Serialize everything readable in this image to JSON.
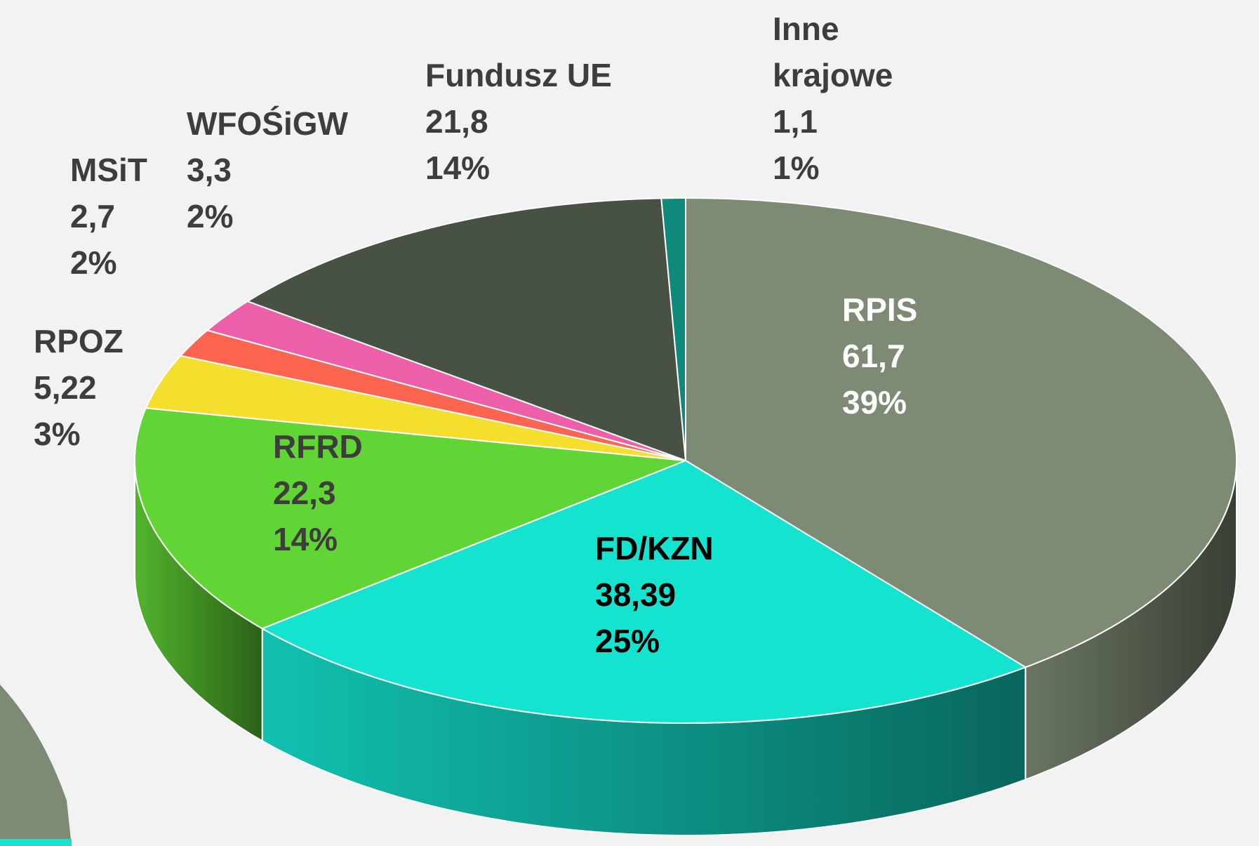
{
  "chart_data": {
    "type": "pie3d",
    "categories": [
      "RPIS",
      "FD/KZN",
      "RFRD",
      "RPOZ",
      "MSiT",
      "WFOŚiGW",
      "Fundusz UE",
      "Inne krajowe"
    ],
    "values": [
      61.7,
      38.39,
      22.3,
      5.22,
      2.7,
      3.3,
      21.8,
      1.1
    ],
    "value_labels": [
      "61,7",
      "38,39",
      "22,3",
      "5,22",
      "2,7",
      "3,3",
      "21,8",
      "1,1"
    ],
    "shares": [
      39,
      25,
      14,
      3,
      2,
      2,
      14,
      1
    ],
    "share_labels": [
      "39%",
      "25%",
      "14%",
      "3%",
      "2%",
      "2%",
      "14%",
      "1%"
    ],
    "colors": [
      "#7d8b74",
      "#14e3cf",
      "#60d535",
      "#f5df2e",
      "#fe6550",
      "#ed5fa8",
      "#485244",
      "#0f8a7a"
    ]
  }
}
